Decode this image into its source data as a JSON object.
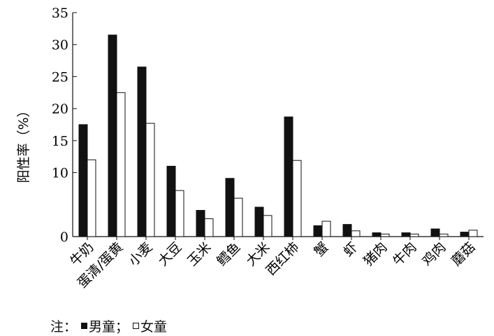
{
  "chart_data": {
    "type": "bar",
    "title": "",
    "xlabel": "",
    "ylabel": "阳性率（%）",
    "ylim": [
      0,
      35
    ],
    "yticks": [
      35,
      30,
      25,
      20,
      15,
      10,
      0
    ],
    "categories": [
      "牛奶",
      "蛋清/蛋黄",
      "小麦",
      "大豆",
      "玉米",
      "鳕鱼",
      "大米",
      "西红柿",
      "蟹",
      "虾",
      "猪肉",
      "牛肉",
      "鸡肉",
      "蘑菇"
    ],
    "series": [
      {
        "name": "男童",
        "color": "#111111",
        "values": [
          17.5,
          31.5,
          26.5,
          11.0,
          4.1,
          9.1,
          4.6,
          18.7,
          1.7,
          1.9,
          0.6,
          0.6,
          1.2,
          0.7
        ]
      },
      {
        "name": "女童",
        "color": "#ffffff",
        "values": [
          12.0,
          22.5,
          17.7,
          7.2,
          2.8,
          6.0,
          3.3,
          11.9,
          2.4,
          0.9,
          0.4,
          0.4,
          0.4,
          1.0
        ]
      }
    ]
  },
  "note": {
    "prefix": "注：",
    "boys_label": "男童",
    "separator": "；",
    "girls_label": "女童"
  }
}
